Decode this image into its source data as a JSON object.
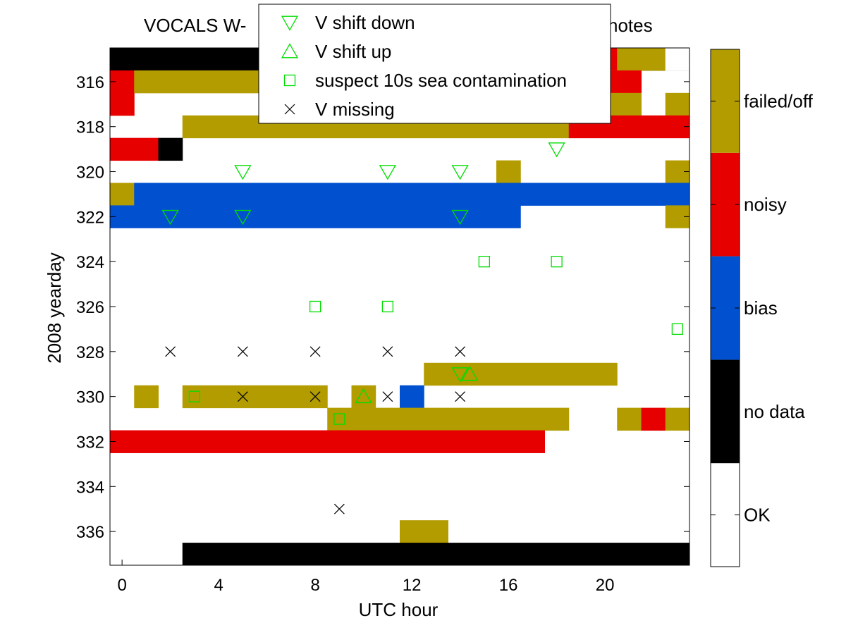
{
  "chart_data": {
    "type": "heatmap",
    "title": "VOCALS W-… notes",
    "title_visible_left": "VOCALS W-",
    "title_visible_right": "notes",
    "xlabel": "UTC hour",
    "ylabel": "2008 yearday",
    "xlim": [
      -0.5,
      23.5
    ],
    "ylim": [
      314.5,
      337.5
    ],
    "x_ticks": [
      0,
      4,
      8,
      12,
      16,
      20
    ],
    "y_ticks": [
      316,
      318,
      320,
      322,
      324,
      326,
      328,
      330,
      332,
      334,
      336
    ],
    "y_reversed": true,
    "grid": false,
    "colorbar": {
      "categories": [
        "OK",
        "no data",
        "bias",
        "noisy",
        "failed/off"
      ],
      "colors": [
        "#ffffff",
        "#000000",
        "#0050d0",
        "#e60000",
        "#b39c00"
      ]
    },
    "cells": [
      {
        "day": 315,
        "segments": [
          {
            "h0": 0,
            "h1": 23,
            "status": "no data"
          },
          {
            "h0": 20,
            "h1": 20,
            "status": "noisy"
          },
          {
            "h0": 21,
            "h1": 22,
            "status": "failed/off"
          },
          {
            "h0": 23,
            "h1": 23,
            "status": "OK"
          }
        ]
      },
      {
        "day": 316,
        "segments": [
          {
            "h0": 0,
            "h1": 0,
            "status": "noisy"
          },
          {
            "h0": 1,
            "h1": 20,
            "status": "failed/off"
          },
          {
            "h0": 20,
            "h1": 21,
            "status": "noisy"
          }
        ]
      },
      {
        "day": 317,
        "segments": [
          {
            "h0": 0,
            "h1": 0,
            "status": "noisy"
          },
          {
            "h0": 20,
            "h1": 21,
            "status": "failed/off"
          },
          {
            "h0": 23,
            "h1": 23,
            "status": "failed/off"
          }
        ]
      },
      {
        "day": 318,
        "segments": [
          {
            "h0": 3,
            "h1": 18,
            "status": "failed/off"
          },
          {
            "h0": 19,
            "h1": 23,
            "status": "noisy"
          }
        ]
      },
      {
        "day": 319,
        "segments": [
          {
            "h0": 0,
            "h1": 1,
            "status": "noisy"
          },
          {
            "h0": 2,
            "h1": 2,
            "status": "no data"
          }
        ]
      },
      {
        "day": 320,
        "segments": [
          {
            "h0": 16,
            "h1": 16,
            "status": "failed/off"
          },
          {
            "h0": 23,
            "h1": 23,
            "status": "failed/off"
          }
        ]
      },
      {
        "day": 321,
        "segments": [
          {
            "h0": 0,
            "h1": 0,
            "status": "failed/off"
          },
          {
            "h0": 1,
            "h1": 23,
            "status": "bias"
          }
        ]
      },
      {
        "day": 322,
        "segments": [
          {
            "h0": 0,
            "h1": 16,
            "status": "bias"
          },
          {
            "h0": 23,
            "h1": 23,
            "status": "failed/off"
          }
        ]
      },
      {
        "day": 329,
        "segments": [
          {
            "h0": 13,
            "h1": 20,
            "status": "failed/off"
          }
        ]
      },
      {
        "day": 330,
        "segments": [
          {
            "h0": 1,
            "h1": 1,
            "status": "failed/off"
          },
          {
            "h0": 3,
            "h1": 8,
            "status": "failed/off"
          },
          {
            "h0": 10,
            "h1": 10,
            "status": "failed/off"
          },
          {
            "h0": 12,
            "h1": 12,
            "status": "bias"
          }
        ]
      },
      {
        "day": 331,
        "segments": [
          {
            "h0": 9,
            "h1": 18,
            "status": "failed/off"
          },
          {
            "h0": 21,
            "h1": 21,
            "status": "failed/off"
          },
          {
            "h0": 22,
            "h1": 22,
            "status": "noisy"
          },
          {
            "h0": 23,
            "h1": 23,
            "status": "failed/off"
          }
        ]
      },
      {
        "day": 332,
        "segments": [
          {
            "h0": 0,
            "h1": 17,
            "status": "noisy"
          }
        ]
      },
      {
        "day": 336,
        "segments": [
          {
            "h0": 12,
            "h1": 13,
            "status": "failed/off"
          }
        ]
      },
      {
        "day": 337,
        "segments": [
          {
            "h0": 3,
            "h1": 23,
            "status": "no data"
          }
        ]
      }
    ],
    "markers": [
      {
        "name": "V shift down",
        "symbol": "triangle-down",
        "color": "#00dd00",
        "points": [
          [
            18,
            319
          ],
          [
            5,
            320
          ],
          [
            11,
            320
          ],
          [
            14,
            320
          ],
          [
            2,
            322
          ],
          [
            5,
            322
          ],
          [
            14,
            322
          ],
          [
            14,
            329
          ]
        ]
      },
      {
        "name": "V shift up",
        "symbol": "triangle-up",
        "color": "#00dd00",
        "points": [
          [
            14.4,
            329
          ],
          [
            10,
            330
          ]
        ]
      },
      {
        "name": "suspect 10s sea contamination",
        "symbol": "square",
        "color": "#00dd00",
        "points": [
          [
            15,
            324
          ],
          [
            18,
            324
          ],
          [
            8,
            326
          ],
          [
            11,
            326
          ],
          [
            23,
            327
          ],
          [
            3,
            330
          ],
          [
            9,
            331
          ]
        ]
      },
      {
        "name": "V missing",
        "symbol": "x",
        "color": "#000000",
        "points": [
          [
            2,
            328
          ],
          [
            5,
            328
          ],
          [
            8,
            328
          ],
          [
            11,
            328
          ],
          [
            14,
            328
          ],
          [
            5,
            330
          ],
          [
            8,
            330
          ],
          [
            11,
            330
          ],
          [
            14,
            330
          ],
          [
            9,
            335
          ]
        ]
      }
    ],
    "legend_position": "top-center"
  }
}
